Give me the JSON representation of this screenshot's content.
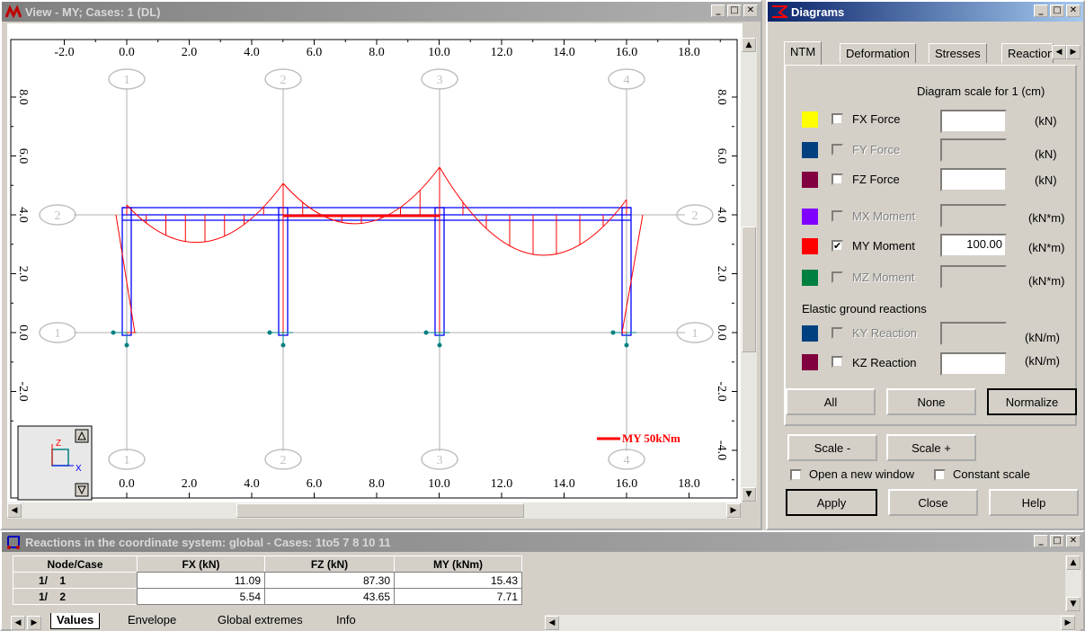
{
  "view_window": {
    "title": "View - MY; Cases: 1 (DL)",
    "x_axis_ticks": [
      "-2.0",
      "0.0",
      "2.0",
      "4.0",
      "6.0",
      "8.0",
      "10.0",
      "12.0",
      "14.0",
      "16.0",
      "18.0"
    ],
    "y_axis_ticks_left": [
      "8.0",
      "6.0",
      "4.0",
      "2.0",
      "0.0",
      "-2.0"
    ],
    "y_axis_ticks_right": [
      "8.0",
      "6.0",
      "4.0",
      "2.0",
      "0.0",
      "-2.0",
      "-4.0"
    ],
    "column_grid_labels": [
      "1",
      "2",
      "3",
      "4"
    ],
    "row_grid_labels": [
      "2",
      "1"
    ],
    "axis_z_label": "Z",
    "axis_x_label": "X",
    "legend": "MY 50kNm",
    "legend_color": "#ff0000",
    "frame_color": "#0000ff",
    "diagram_color": "#ff0000"
  },
  "diagrams": {
    "title": "Diagrams",
    "tabs": [
      "NTM",
      "Deformation",
      "Stresses",
      "Reaction"
    ],
    "scale_header": "Diagram scale for 1  (cm)",
    "rows": [
      {
        "label": "FX Force",
        "color": "#ffff00",
        "checked": false,
        "enabled": true,
        "value": "",
        "unit": "(kN)"
      },
      {
        "label": "FY Force",
        "color": "#004080",
        "checked": false,
        "enabled": false,
        "value": "",
        "unit": "(kN)"
      },
      {
        "label": "FZ Force",
        "color": "#800040",
        "checked": false,
        "enabled": true,
        "value": "",
        "unit": "(kN)"
      },
      {
        "label": "MX Moment",
        "color": "#8000ff",
        "checked": false,
        "enabled": false,
        "value": "",
        "unit": "(kN*m)"
      },
      {
        "label": "MY Moment",
        "color": "#ff0000",
        "checked": true,
        "enabled": true,
        "value": "100.00",
        "unit": "(kN*m)"
      },
      {
        "label": "MZ Moment",
        "color": "#008040",
        "checked": false,
        "enabled": false,
        "value": "",
        "unit": "(kN*m)"
      }
    ],
    "ground_title": "Elastic ground reactions",
    "ground_rows": [
      {
        "label": "KY Reaction",
        "color": "#004080",
        "checked": false,
        "enabled": false,
        "value": "",
        "unit": "(kN/m)"
      },
      {
        "label": "KZ Reaction",
        "color": "#800040",
        "checked": false,
        "enabled": true,
        "value": "",
        "unit": "(kN/m)"
      }
    ],
    "buttons": {
      "all": "All",
      "none": "None",
      "normalize": "Normalize",
      "scale_minus": "Scale -",
      "scale_plus": "Scale +",
      "apply": "Apply",
      "close": "Close",
      "help": "Help"
    },
    "options": {
      "open_new_window": "Open a new window",
      "constant_scale": "Constant scale"
    }
  },
  "reactions": {
    "title": "Reactions in the coordinate system: global - Cases:  1to5 7 8 10 11",
    "columns": [
      "Node/Case",
      "FX (kN)",
      "FZ (kN)",
      "MY (kNm)"
    ],
    "rows": [
      {
        "node": "1/",
        "case": "1",
        "fx": "11.09",
        "fz": "87.30",
        "my": "15.43"
      },
      {
        "node": "1/",
        "case": "2",
        "fx": "5.54",
        "fz": "43.65",
        "my": "7.71"
      }
    ],
    "tabs": [
      "Values",
      "Envelope",
      "Global extremes",
      "Info"
    ]
  }
}
